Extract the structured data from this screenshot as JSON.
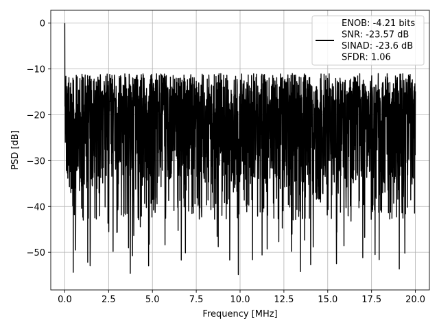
{
  "chart_data": {
    "type": "line",
    "xlabel": "Frequency [MHz]",
    "ylabel": "PSD [dB]",
    "xlim": [
      -0.8,
      20.8
    ],
    "ylim": [
      -58.2,
      2.8
    ],
    "xticks": [
      0.0,
      2.5,
      5.0,
      7.5,
      10.0,
      12.5,
      15.0,
      17.5,
      20.0
    ],
    "xtick_labels": [
      "0.0",
      "2.5",
      "5.0",
      "7.5",
      "10.0",
      "12.5",
      "15.0",
      "17.5",
      "20.0"
    ],
    "yticks": [
      0,
      -10,
      -20,
      -30,
      -40,
      -50
    ],
    "ytick_labels": [
      "0",
      "−10",
      "−20",
      "−30",
      "−40",
      "−50"
    ],
    "grid": true,
    "legend_position": "top-right",
    "series": [
      {
        "name": "ENOB: -4.21 bits\nSNR: -23.57 dB\nSINAD: -23.6 dB\nSFDR: 1.06",
        "color": "#000000",
        "description_range": {
          "x": [
            0,
            20
          ],
          "y_floor": [
            -56,
            -33
          ],
          "y_ceiling": [
            -18,
            -11
          ]
        },
        "peak": {
          "x": 0.0,
          "y": 0.0
        }
      }
    ],
    "legend_lines": [
      "ENOB: -4.21 bits",
      "SNR: -23.57 dB",
      "SINAD: -23.6 dB",
      "SFDR: 1.06"
    ]
  }
}
